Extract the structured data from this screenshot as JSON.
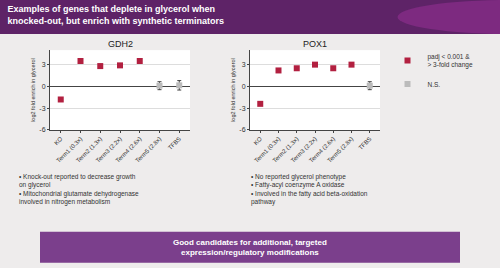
{
  "title": "Examples of genes that deplete in glycerol when\nknocked-out, but enrich with synthetic terminators",
  "annotations": [
    "Good candidates for additional, targeted\nexpression/regulatory modifications"
  ],
  "chart_data": [
    {
      "type": "scatter",
      "title": "GDH2",
      "ylabel": "log2 fold enrich in glycerol",
      "categories": [
        "KO",
        "Term1 (0.3x)",
        "Term2 (1.3x)",
        "Term3 (2.2x)",
        "Term4 (2.6x)",
        "Term5 (2.8x)",
        "TFBS"
      ],
      "series": [
        {
          "name": "padj < 0.001 &\n> 3-fold change",
          "color": "#b22040",
          "marker": "square",
          "values": [
            -1.8,
            3.5,
            2.8,
            2.9,
            3.5,
            null,
            null
          ],
          "errors": [
            0.15,
            0.2,
            0.25,
            0.2,
            0.2,
            null,
            null
          ]
        },
        {
          "name": "N.S.",
          "color": "#bbbbbb",
          "marker": "square",
          "values": [
            null,
            null,
            null,
            null,
            null,
            0.1,
            0.15
          ],
          "errors": [
            null,
            null,
            null,
            null,
            null,
            0.55,
            0.65
          ]
        }
      ],
      "ylim": [
        -6,
        5
      ],
      "yticks": [
        -6,
        -3,
        0,
        3
      ],
      "grid": true,
      "legend": "upper right",
      "annotations": [
        "• Knock-out reported to decrease growth\non glycerol",
        "• Mitochondrial glutamate dehydrogenase\ninvolved in nitrogen metabolism"
      ]
    },
    {
      "type": "scatter",
      "title": "POX1",
      "ylabel": "log2 fold enrich in glycerol",
      "categories": [
        "KO",
        "Term1 (0.3x)",
        "Term2 (1.3x)",
        "Term3 (2.2x)",
        "Term4 (2.6x)",
        "Term5 (2.8x)",
        "TFBS"
      ],
      "series": [
        {
          "name": "padj < 0.001 &\n> 3-fold change",
          "color": "#b22040",
          "marker": "square",
          "values": [
            -2.4,
            2.2,
            2.5,
            3.0,
            2.5,
            3.0,
            null
          ],
          "errors": [
            0.2,
            0.25,
            0.2,
            0.2,
            0.25,
            0.25,
            null
          ]
        },
        {
          "name": "N.S.",
          "color": "#bbbbbb",
          "marker": "square",
          "values": [
            null,
            null,
            null,
            null,
            null,
            null,
            0.1
          ],
          "errors": [
            null,
            null,
            null,
            null,
            null,
            null,
            0.55
          ]
        }
      ],
      "ylim": [
        -6,
        5
      ],
      "yticks": [
        -6,
        -3,
        0,
        3
      ],
      "grid": true,
      "legend": "upper right",
      "annotations": [
        "• No reported glycerol phenotype",
        "• Fatty-acyl coenzyme A oxidase",
        "• Involved in the fatty acid beta-oxidation\npathway"
      ]
    }
  ]
}
